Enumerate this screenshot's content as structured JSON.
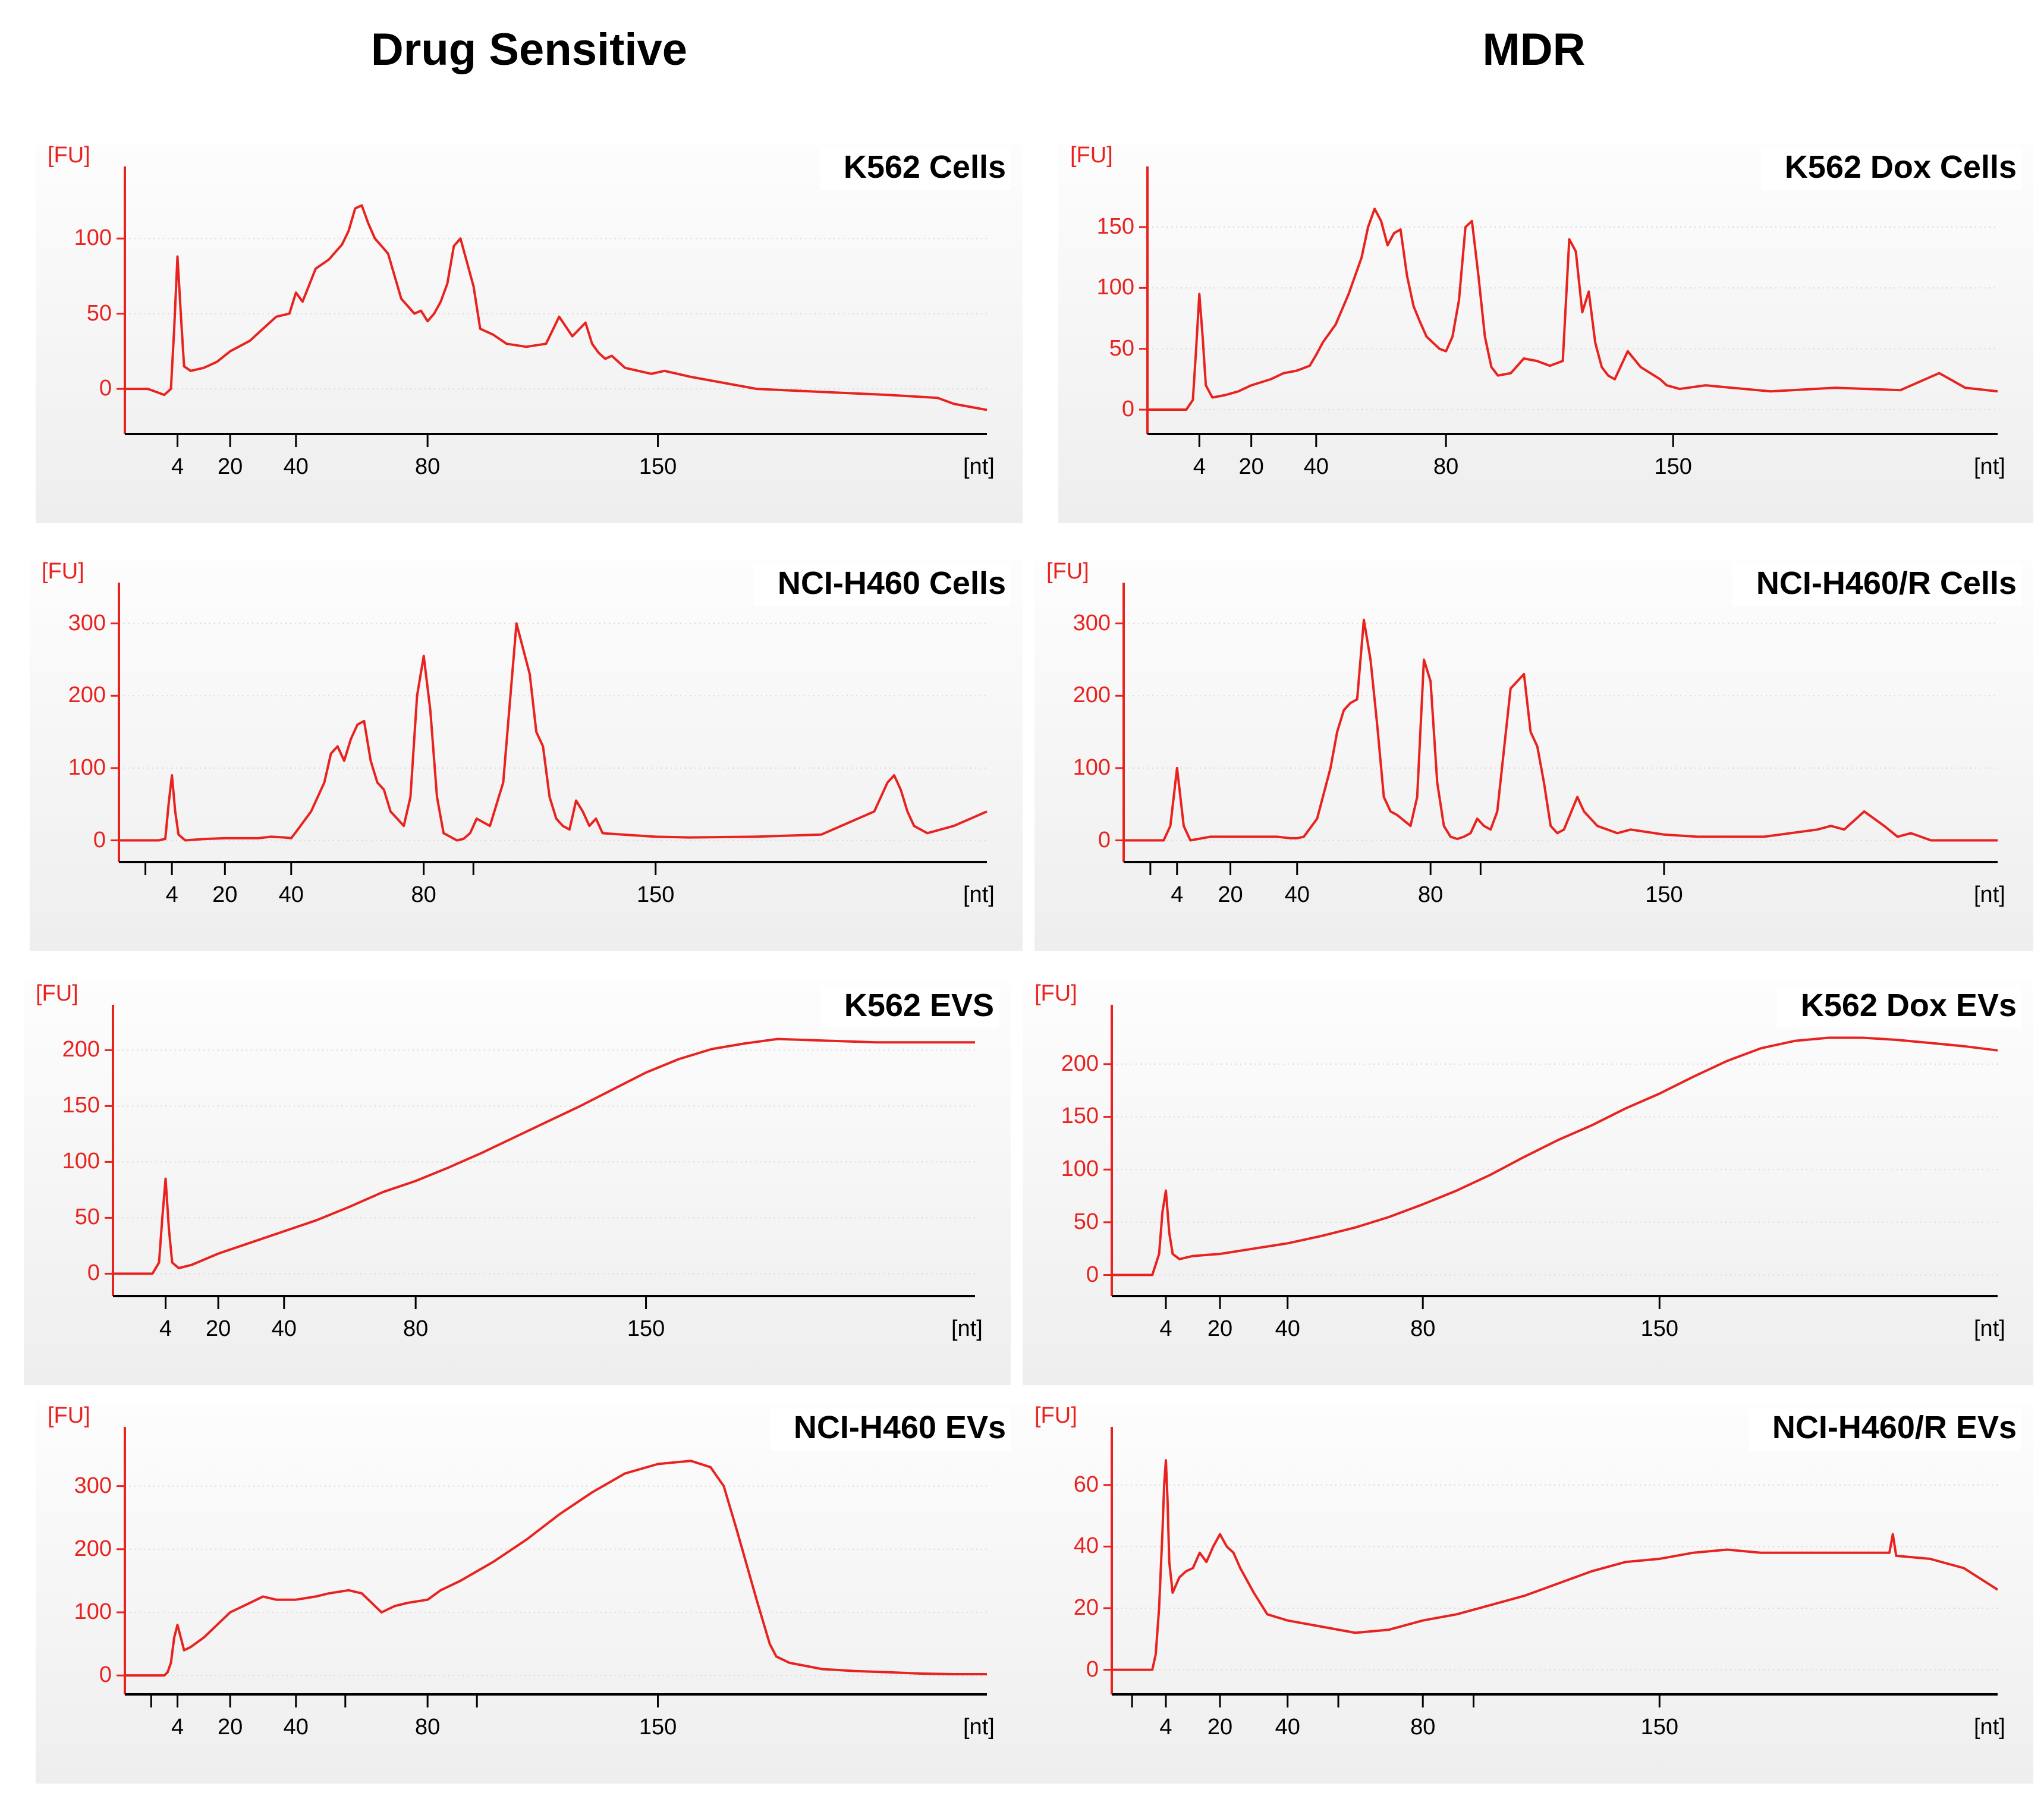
{
  "column_titles": {
    "left": "Drug Sensitive",
    "right": "MDR"
  },
  "chart_data": [
    {
      "id": "k562-cells",
      "type": "line",
      "title": "K562 Cells",
      "ylabel": "[FU]",
      "xlabel": "[nt]",
      "x_unit": "nt",
      "xlim": [
        -12,
        250
      ],
      "ylim": [
        -30,
        140
      ],
      "y_ticks": [
        0,
        50,
        100
      ],
      "x_ticks": [
        "4",
        "20",
        "40",
        "80",
        "150"
      ],
      "x_tick_positions": [
        4,
        20,
        40,
        80,
        150
      ],
      "extra_minor_ticks": [],
      "color": "#e8231f",
      "series": [
        {
          "name": "K562 Cells",
          "x": [
            -12,
            -5,
            0,
            2,
            3,
            4,
            5,
            6,
            8,
            12,
            16,
            20,
            26,
            30,
            34,
            38,
            40,
            42,
            46,
            50,
            54,
            56,
            58,
            60,
            62,
            64,
            66,
            68,
            72,
            74,
            76,
            78,
            80,
            82,
            84,
            86,
            88,
            90,
            92,
            94,
            96,
            100,
            104,
            110,
            116,
            120,
            124,
            128,
            130,
            132,
            134,
            136,
            140,
            148,
            152,
            160,
            180,
            200,
            220,
            235,
            240,
            250
          ],
          "y": [
            0,
            0,
            -4,
            0,
            40,
            88,
            50,
            15,
            12,
            14,
            18,
            25,
            32,
            40,
            48,
            50,
            64,
            58,
            80,
            86,
            96,
            105,
            120,
            122,
            110,
            100,
            95,
            90,
            60,
            55,
            50,
            52,
            45,
            50,
            58,
            70,
            95,
            100,
            84,
            68,
            40,
            36,
            30,
            28,
            30,
            48,
            35,
            44,
            30,
            24,
            20,
            22,
            14,
            10,
            12,
            8,
            0,
            -2,
            -4,
            -6,
            -10,
            -14
          ]
        }
      ]
    },
    {
      "id": "k562-dox-cells",
      "type": "line",
      "title": "K562 Dox Cells",
      "ylabel": "[FU]",
      "xlabel": "[nt]",
      "x_unit": "nt",
      "xlim": [
        -12,
        250
      ],
      "ylim": [
        -20,
        190
      ],
      "y_ticks": [
        0,
        50,
        100,
        150
      ],
      "x_ticks": [
        "4",
        "20",
        "40",
        "80",
        "150"
      ],
      "x_tick_positions": [
        4,
        20,
        40,
        80,
        150
      ],
      "extra_minor_ticks": [],
      "color": "#e8231f",
      "series": [
        {
          "name": "K562 Dox Cells",
          "x": [
            -12,
            0,
            2,
            3,
            4,
            5,
            6,
            8,
            12,
            16,
            20,
            26,
            30,
            34,
            38,
            40,
            42,
            46,
            50,
            54,
            56,
            58,
            60,
            62,
            64,
            66,
            68,
            70,
            72,
            74,
            76,
            78,
            80,
            82,
            84,
            86,
            88,
            90,
            92,
            94,
            96,
            100,
            104,
            108,
            112,
            116,
            118,
            120,
            122,
            124,
            126,
            128,
            130,
            132,
            136,
            140,
            146,
            148,
            152,
            160,
            180,
            200,
            220,
            232,
            240,
            250
          ],
          "y": [
            0,
            0,
            8,
            50,
            95,
            60,
            20,
            10,
            12,
            15,
            20,
            25,
            30,
            32,
            36,
            45,
            55,
            70,
            95,
            125,
            150,
            165,
            155,
            135,
            145,
            148,
            110,
            85,
            72,
            60,
            55,
            50,
            48,
            60,
            90,
            150,
            155,
            110,
            60,
            35,
            28,
            30,
            42,
            40,
            36,
            40,
            140,
            130,
            80,
            97,
            55,
            35,
            28,
            25,
            48,
            35,
            25,
            20,
            17,
            20,
            15,
            18,
            16,
            30,
            18,
            15
          ]
        }
      ]
    },
    {
      "id": "nci-h460-cells",
      "type": "line",
      "title": "NCI-H460 Cells",
      "ylabel": "[FU]",
      "xlabel": "[nt]",
      "x_unit": "nt",
      "xlim": [
        -12,
        250
      ],
      "ylim": [
        -30,
        340
      ],
      "y_ticks": [
        0,
        100,
        200,
        300
      ],
      "x_ticks": [
        "4",
        "20",
        "40",
        "80",
        "150"
      ],
      "x_tick_positions": [
        4,
        20,
        40,
        80,
        150
      ],
      "extra_minor_ticks": [
        -4,
        95
      ],
      "color": "#e8231f",
      "series": [
        {
          "name": "NCI-H460 Cells",
          "x": [
            -12,
            -5,
            0,
            2,
            3,
            4,
            5,
            6,
            8,
            14,
            20,
            26,
            30,
            34,
            38,
            40,
            42,
            46,
            50,
            52,
            54,
            56,
            58,
            60,
            62,
            64,
            66,
            68,
            70,
            74,
            76,
            78,
            80,
            82,
            84,
            86,
            88,
            90,
            92,
            94,
            96,
            100,
            104,
            108,
            112,
            114,
            116,
            118,
            120,
            122,
            124,
            126,
            128,
            130,
            132,
            134,
            140,
            150,
            160,
            180,
            200,
            216,
            220,
            222,
            224,
            226,
            228,
            232,
            240,
            250
          ],
          "y": [
            0,
            0,
            0,
            2,
            50,
            90,
            40,
            8,
            0,
            2,
            3,
            3,
            3,
            5,
            4,
            3,
            15,
            40,
            80,
            120,
            130,
            110,
            140,
            160,
            165,
            110,
            80,
            70,
            40,
            20,
            60,
            200,
            255,
            180,
            60,
            10,
            5,
            0,
            2,
            10,
            30,
            20,
            80,
            300,
            230,
            150,
            130,
            60,
            30,
            20,
            15,
            55,
            40,
            20,
            30,
            10,
            8,
            5,
            4,
            5,
            8,
            40,
            80,
            90,
            70,
            40,
            20,
            10,
            20,
            40
          ]
        }
      ]
    },
    {
      "id": "nci-h460-r-cells",
      "type": "line",
      "title": "NCI-H460/R Cells",
      "ylabel": "[FU]",
      "xlabel": "[nt]",
      "x_unit": "nt",
      "xlim": [
        -12,
        250
      ],
      "ylim": [
        -30,
        340
      ],
      "y_ticks": [
        0,
        100,
        200,
        300
      ],
      "x_ticks": [
        "4",
        "20",
        "40",
        "80",
        "150"
      ],
      "x_tick_positions": [
        4,
        20,
        40,
        80,
        150
      ],
      "extra_minor_ticks": [
        -4,
        95
      ],
      "color": "#e8231f",
      "series": [
        {
          "name": "NCI-H460/R Cells",
          "x": [
            -12,
            -5,
            0,
            2,
            3,
            4,
            5,
            6,
            8,
            14,
            20,
            26,
            30,
            34,
            38,
            40,
            42,
            46,
            50,
            52,
            54,
            56,
            58,
            60,
            62,
            64,
            66,
            68,
            70,
            74,
            76,
            78,
            80,
            82,
            84,
            86,
            88,
            90,
            92,
            94,
            96,
            98,
            100,
            104,
            108,
            110,
            112,
            114,
            116,
            118,
            120,
            124,
            126,
            130,
            136,
            140,
            150,
            160,
            180,
            196,
            200,
            204,
            210,
            216,
            220,
            224,
            230,
            240,
            250
          ],
          "y": [
            0,
            0,
            0,
            20,
            60,
            100,
            60,
            20,
            0,
            5,
            5,
            5,
            5,
            5,
            3,
            3,
            5,
            30,
            100,
            150,
            180,
            190,
            195,
            305,
            250,
            160,
            60,
            40,
            35,
            20,
            60,
            250,
            220,
            80,
            20,
            5,
            2,
            5,
            10,
            30,
            20,
            15,
            40,
            210,
            230,
            150,
            130,
            80,
            20,
            10,
            15,
            60,
            40,
            20,
            10,
            15,
            8,
            5,
            5,
            15,
            20,
            15,
            40,
            20,
            5,
            10,
            0,
            0,
            0
          ]
        }
      ]
    },
    {
      "id": "k562-evs",
      "type": "line",
      "title": "K562 EVS",
      "ylabel": "[FU]",
      "xlabel": "[nt]",
      "x_unit": "nt",
      "xlim": [
        -12,
        250
      ],
      "ylim": [
        -20,
        230
      ],
      "y_ticks": [
        0,
        50,
        100,
        150,
        200
      ],
      "x_ticks": [
        "4",
        "20",
        "40",
        "80",
        "150"
      ],
      "x_tick_positions": [
        4,
        20,
        40,
        80,
        150
      ],
      "extra_minor_ticks": [],
      "color": "#e8231f",
      "series": [
        {
          "name": "K562 EVS",
          "x": [
            -12,
            -5,
            0,
            2,
            3,
            4,
            5,
            6,
            8,
            12,
            20,
            30,
            40,
            50,
            60,
            70,
            80,
            90,
            100,
            110,
            120,
            130,
            140,
            150,
            160,
            170,
            180,
            190,
            200,
            210,
            220,
            230,
            240,
            250
          ],
          "y": [
            0,
            0,
            0,
            10,
            50,
            85,
            40,
            10,
            5,
            8,
            18,
            28,
            38,
            48,
            60,
            73,
            83,
            95,
            108,
            122,
            136,
            150,
            165,
            180,
            192,
            201,
            206,
            210,
            209,
            208,
            207,
            207,
            207,
            207
          ]
        }
      ]
    },
    {
      "id": "k562-dox-evs",
      "type": "line",
      "title": "K562 Dox EVs",
      "ylabel": "[FU]",
      "xlabel": "[nt]",
      "x_unit": "nt",
      "xlim": [
        -12,
        250
      ],
      "ylim": [
        -20,
        245
      ],
      "y_ticks": [
        0,
        50,
        100,
        150,
        200
      ],
      "x_ticks": [
        "4",
        "20",
        "40",
        "80",
        "150"
      ],
      "x_tick_positions": [
        4,
        20,
        40,
        80,
        150
      ],
      "extra_minor_ticks": [],
      "color": "#e8231f",
      "series": [
        {
          "name": "K562 Dox EVs",
          "x": [
            -12,
            -5,
            0,
            2,
            3,
            4,
            5,
            6,
            8,
            12,
            20,
            30,
            40,
            50,
            60,
            70,
            80,
            90,
            100,
            110,
            120,
            130,
            140,
            150,
            160,
            170,
            180,
            190,
            200,
            210,
            220,
            230,
            240,
            250
          ],
          "y": [
            0,
            0,
            0,
            20,
            60,
            80,
            40,
            20,
            15,
            18,
            20,
            25,
            30,
            37,
            45,
            55,
            67,
            80,
            95,
            112,
            128,
            142,
            158,
            172,
            188,
            203,
            215,
            222,
            225,
            225,
            223,
            220,
            217,
            213
          ]
        }
      ]
    },
    {
      "id": "nci-h460-evs",
      "type": "line",
      "title": "NCI-H460 EVs",
      "ylabel": "[FU]",
      "xlabel": "[nt]",
      "x_unit": "nt",
      "xlim": [
        -12,
        250
      ],
      "ylim": [
        -30,
        375
      ],
      "y_ticks": [
        0,
        100,
        200,
        300
      ],
      "x_ticks": [
        "4",
        "20",
        "40",
        "80",
        "150"
      ],
      "x_tick_positions": [
        4,
        20,
        40,
        80,
        150
      ],
      "extra_minor_ticks": [
        -4,
        55,
        95
      ],
      "color": "#e8231f",
      "series": [
        {
          "name": "NCI-H460 EVs",
          "x": [
            -12,
            -5,
            0,
            1,
            2,
            3,
            4,
            5,
            6,
            8,
            12,
            20,
            24,
            30,
            34,
            40,
            46,
            50,
            56,
            60,
            66,
            70,
            74,
            80,
            84,
            90,
            100,
            110,
            120,
            130,
            140,
            150,
            160,
            166,
            170,
            174,
            180,
            184,
            186,
            190,
            200,
            210,
            220,
            230,
            240,
            250
          ],
          "y": [
            0,
            0,
            0,
            5,
            20,
            60,
            80,
            60,
            40,
            45,
            60,
            100,
            110,
            125,
            120,
            120,
            125,
            130,
            135,
            130,
            100,
            110,
            115,
            120,
            135,
            150,
            180,
            215,
            255,
            290,
            320,
            335,
            340,
            330,
            300,
            230,
            120,
            50,
            30,
            20,
            10,
            7,
            5,
            3,
            2,
            2
          ]
        }
      ]
    },
    {
      "id": "nci-h460-r-evs",
      "type": "line",
      "title": "NCI-H460/R EVs",
      "ylabel": "[FU]",
      "xlabel": "[nt]",
      "x_unit": "nt",
      "xlim": [
        -12,
        250
      ],
      "ylim": [
        -8,
        75
      ],
      "y_ticks": [
        0,
        20,
        40,
        60
      ],
      "x_ticks": [
        "4",
        "20",
        "40",
        "80",
        "150"
      ],
      "x_tick_positions": [
        4,
        20,
        40,
        80,
        150
      ],
      "extra_minor_ticks": [
        -6,
        55,
        95
      ],
      "color": "#e8231f",
      "series": [
        {
          "name": "NCI-H460/R EVs",
          "x": [
            -12,
            -5,
            0,
            1,
            2,
            3,
            3.5,
            4,
            4.5,
            5,
            6,
            8,
            10,
            12,
            14,
            16,
            18,
            20,
            22,
            24,
            26,
            30,
            34,
            40,
            50,
            60,
            70,
            80,
            90,
            100,
            110,
            120,
            130,
            140,
            150,
            160,
            170,
            180,
            190,
            200,
            210,
            218,
            219,
            220,
            230,
            240,
            250
          ],
          "y": [
            0,
            0,
            0,
            5,
            20,
            45,
            60,
            68,
            55,
            35,
            25,
            30,
            32,
            33,
            38,
            35,
            40,
            44,
            40,
            38,
            33,
            25,
            18,
            16,
            14,
            12,
            13,
            16,
            18,
            21,
            24,
            28,
            32,
            35,
            36,
            38,
            39,
            38,
            38,
            38,
            38,
            38,
            44,
            37,
            36,
            33,
            26
          ]
        }
      ]
    }
  ]
}
